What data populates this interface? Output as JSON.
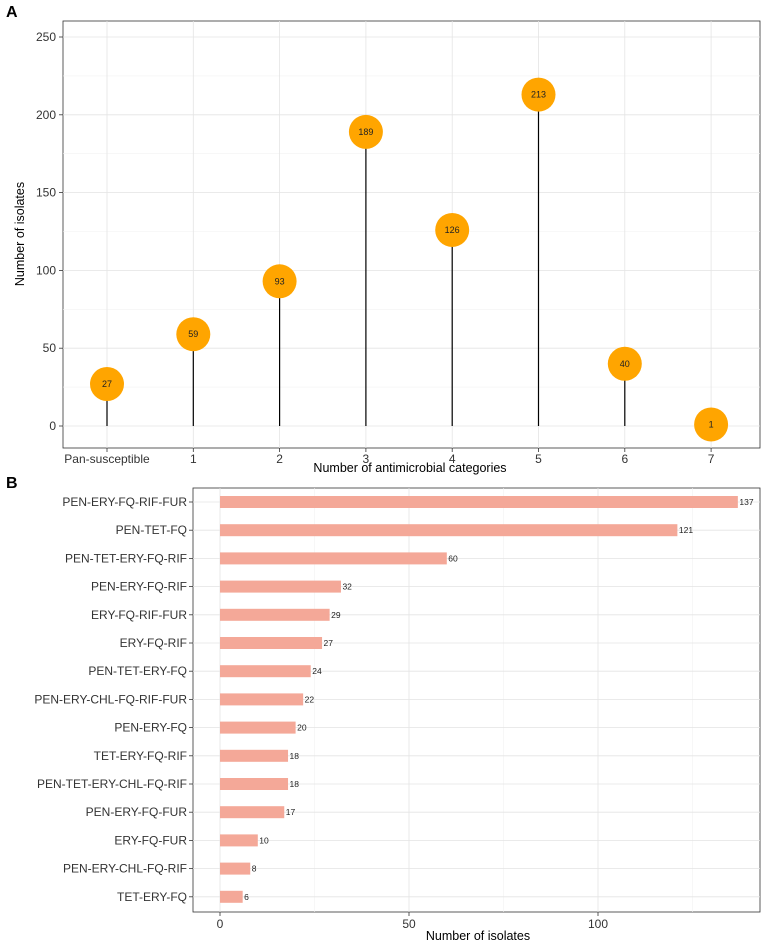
{
  "chart_data": [
    {
      "panel": "A",
      "type": "lollipop",
      "xlabel": "Number of antimicrobial categories",
      "ylabel": "Number of isolates",
      "categories": [
        "Pan-susceptible",
        "1",
        "2",
        "3",
        "4",
        "5",
        "6",
        "7"
      ],
      "values": [
        27,
        59,
        93,
        189,
        126,
        213,
        40,
        1
      ],
      "ylim": [
        0,
        260
      ],
      "yticks": [
        0,
        50,
        100,
        150,
        200,
        250
      ],
      "grid": true,
      "color": "#FFA500",
      "stem_color": "#000000"
    },
    {
      "panel": "B",
      "type": "bar",
      "orientation": "horizontal",
      "xlabel": "Number of isolates",
      "ylabel": "",
      "categories": [
        "PEN-ERY-FQ-RIF-FUR",
        "PEN-TET-FQ",
        "PEN-TET-ERY-FQ-RIF",
        "PEN-ERY-FQ-RIF",
        "ERY-FQ-RIF-FUR",
        "ERY-FQ-RIF",
        "PEN-TET-ERY-FQ",
        "PEN-ERY-CHL-FQ-RIF-FUR",
        "PEN-ERY-FQ",
        "TET-ERY-FQ-RIF",
        "PEN-TET-ERY-CHL-FQ-RIF",
        "PEN-ERY-FQ-FUR",
        "ERY-FQ-FUR",
        "PEN-ERY-CHL-FQ-RIF",
        "TET-ERY-FQ"
      ],
      "values": [
        137,
        121,
        60,
        32,
        29,
        27,
        24,
        22,
        20,
        18,
        18,
        17,
        10,
        8,
        6
      ],
      "xlim": [
        -5,
        143
      ],
      "xticks": [
        0,
        50,
        100
      ],
      "grid": true,
      "color": "#F4A898"
    }
  ]
}
